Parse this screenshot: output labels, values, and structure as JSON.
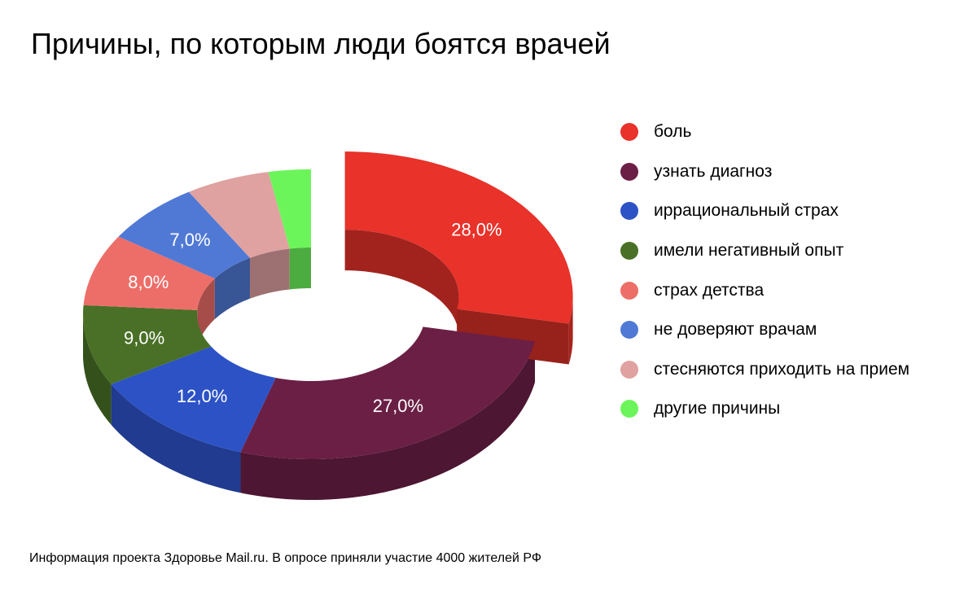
{
  "chart_data": {
    "type": "pie",
    "style": "3d-donut",
    "title": "Причины, по которым люди боятся врачей",
    "categories": [
      "боль",
      "узнать диагноз",
      "иррациональный страх",
      "имели негативный опыт",
      "страх детства",
      "не доверяют врачам",
      "стесняются приходить на прием",
      "другие причины"
    ],
    "values": [
      28.0,
      27.0,
      12.0,
      9.0,
      8.0,
      7.0,
      6.0,
      3.0
    ],
    "value_labels": [
      "28,0%",
      "27,0%",
      "12,0%",
      "9,0%",
      "8,0%",
      "7,0%",
      "",
      ""
    ],
    "colors": [
      "#e8322a",
      "#6b1f45",
      "#2c52c6",
      "#497026",
      "#ed6e69",
      "#5079d5",
      "#e0a1a1",
      "#6cf55a"
    ],
    "exploded_slice": "боль",
    "legend_position": "right"
  },
  "footnote": "Информация проекта Здоровье Mail.ru. В опросе приняли участие 4000 жителей РФ"
}
